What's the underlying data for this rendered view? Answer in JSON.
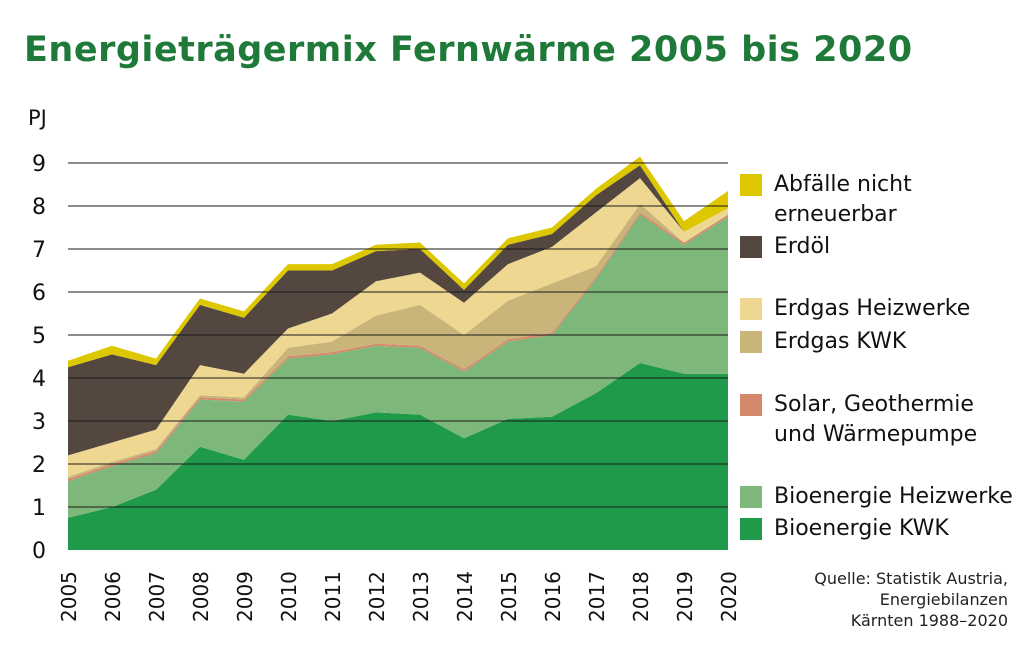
{
  "title": "Energieträgermix Fernwärme 2005 bis 2020",
  "source": "Quelle: Statistik Austria,\nEnergiebilanzen\nKärnten 1988–2020",
  "chart_data": {
    "type": "area",
    "stacked": true,
    "title": "Energieträgermix Fernwärme 2005 bis 2020",
    "ylabel": "PJ",
    "xlabel": "",
    "ylim": [
      0,
      9
    ],
    "yticks": [
      0,
      1,
      2,
      3,
      4,
      5,
      6,
      7,
      8,
      9
    ],
    "grid": true,
    "legend_position": "right",
    "x": [
      "2005",
      "2006",
      "2007",
      "2008",
      "2009",
      "2010",
      "2011",
      "2012",
      "2013",
      "2014",
      "2015",
      "2016",
      "2017",
      "2018",
      "2019",
      "2020"
    ],
    "series": [
      {
        "name": "Bioenergie KWK",
        "color": "#1f9a4a",
        "values": [
          0.75,
          1.0,
          1.4,
          2.4,
          2.1,
          3.15,
          3.0,
          3.2,
          3.15,
          2.6,
          3.05,
          3.1,
          3.65,
          4.35,
          4.1,
          4.1
        ]
      },
      {
        "name": "Bioenergie Heizwerke",
        "color": "#7db87a",
        "values": [
          0.85,
          0.95,
          0.85,
          1.1,
          1.35,
          1.3,
          1.55,
          1.55,
          1.55,
          1.55,
          1.8,
          1.9,
          2.65,
          3.45,
          3.0,
          3.65
        ]
      },
      {
        "name": "Solar, Geothermie und Wärmepumpe",
        "color": "#d4896b",
        "values": [
          0.05,
          0.05,
          0.05,
          0.05,
          0.05,
          0.05,
          0.05,
          0.05,
          0.05,
          0.05,
          0.05,
          0.05,
          0.05,
          0.05,
          0.05,
          0.05
        ]
      },
      {
        "name": "Erdgas KWK",
        "color": "#c9b47a",
        "values": [
          0.05,
          0.05,
          0.05,
          0.05,
          0.05,
          0.2,
          0.25,
          0.65,
          0.95,
          0.8,
          0.9,
          1.15,
          0.25,
          0.2,
          0.0,
          0.0
        ]
      },
      {
        "name": "Erdgas Heizwerke",
        "color": "#eed791",
        "values": [
          0.5,
          0.45,
          0.45,
          0.7,
          0.55,
          0.45,
          0.65,
          0.8,
          0.75,
          0.75,
          0.85,
          0.85,
          1.25,
          0.6,
          0.25,
          0.15
        ]
      },
      {
        "name": "Erdöl",
        "color": "#54473f",
        "values": [
          2.05,
          2.05,
          1.5,
          1.4,
          1.3,
          1.35,
          1.0,
          0.7,
          0.55,
          0.3,
          0.45,
          0.3,
          0.4,
          0.3,
          0.0,
          0.0
        ]
      },
      {
        "name": "Abfälle nicht erneuerbar",
        "color": "#dcc700",
        "values": [
          0.15,
          0.2,
          0.15,
          0.15,
          0.15,
          0.15,
          0.15,
          0.15,
          0.15,
          0.15,
          0.15,
          0.15,
          0.15,
          0.2,
          0.25,
          0.4
        ]
      }
    ]
  },
  "legend": [
    {
      "label": "Abfälle nicht\nerneuerbar",
      "color": "#dcc700"
    },
    {
      "label": "Erdöl",
      "color": "#54473f"
    },
    {
      "label": "Erdgas Heizwerke",
      "color": "#eed791"
    },
    {
      "label": "Erdgas KWK",
      "color": "#c9b47a"
    },
    {
      "label": "Solar, Geothermie\nund Wärmepumpe",
      "color": "#d4896b"
    },
    {
      "label": "Bioenergie Heizwerke",
      "color": "#7db87a"
    },
    {
      "label": "Bioenergie KWK",
      "color": "#1f9a4a"
    }
  ]
}
